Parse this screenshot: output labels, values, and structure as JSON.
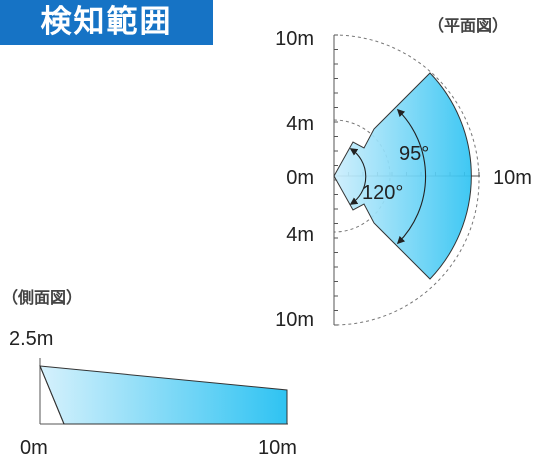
{
  "title": "検知範囲",
  "plan_view": {
    "caption": "（平面図）",
    "y_labels": [
      "10m",
      "4m",
      "0m",
      "4m",
      "10m"
    ],
    "x_label": "10m",
    "angle_outer": "95°",
    "angle_inner": "120°"
  },
  "side_view": {
    "caption": "（側面図）",
    "height_label": "2.5m",
    "x_labels": [
      "0m",
      "10m"
    ]
  },
  "colors": {
    "title_bg": "#1673c5",
    "zone_light": "#cdeefc",
    "zone_dark": "#2fc3f2",
    "outline": "#333333"
  }
}
